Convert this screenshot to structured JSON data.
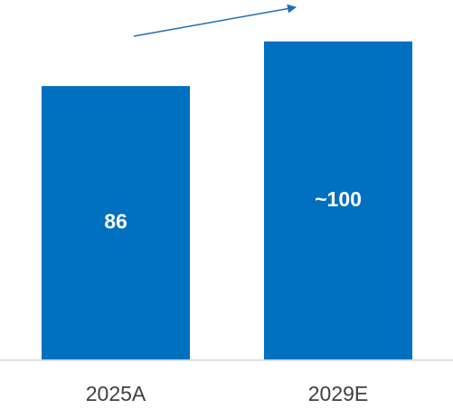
{
  "chart_data": {
    "type": "bar",
    "categories": [
      "2025A",
      "2029E"
    ],
    "values": [
      86,
      100
    ],
    "data_labels": [
      "86",
      "~100"
    ],
    "title": "",
    "xlabel": "",
    "ylabel": "",
    "ylim": [
      0,
      113
    ],
    "grid": false,
    "legend": "none",
    "trend_arrow": true,
    "colors": {
      "bar": "#0070C0",
      "arrow": "#1F6FB5",
      "axis": "#D9D9D9",
      "tick_text": "#404040",
      "label_text": "#FFFFFF"
    }
  }
}
